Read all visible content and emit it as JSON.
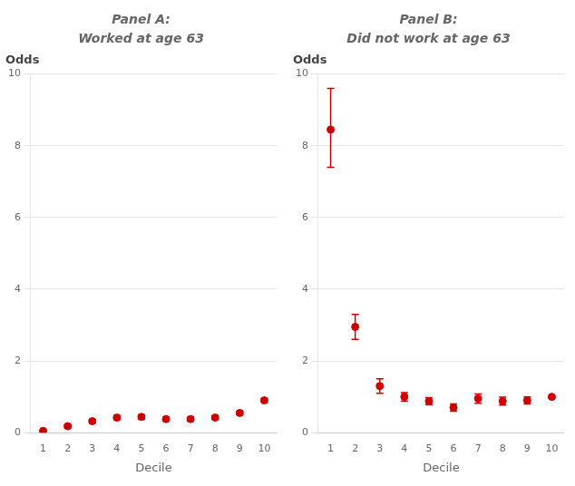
{
  "chart_data": [
    {
      "type": "scatter",
      "title": "Panel A:",
      "subtitle": "Worked at age 63",
      "xlabel": "Decile",
      "ylabel": "Odds",
      "x": [
        1,
        2,
        3,
        4,
        5,
        6,
        7,
        8,
        9,
        10
      ],
      "values": [
        0.05,
        0.18,
        0.32,
        0.42,
        0.44,
        0.38,
        0.38,
        0.42,
        0.55,
        0.9
      ],
      "ci_low": [
        0.03,
        0.14,
        0.27,
        0.36,
        0.38,
        0.33,
        0.33,
        0.37,
        0.5,
        0.85
      ],
      "ci_high": [
        0.07,
        0.22,
        0.37,
        0.48,
        0.5,
        0.43,
        0.43,
        0.47,
        0.6,
        0.95
      ],
      "xlim": [
        0.5,
        10.5
      ],
      "xticks": [
        1,
        2,
        3,
        4,
        5,
        6,
        7,
        8,
        9,
        10
      ],
      "ylim": [
        0,
        10
      ],
      "yticks": [
        0,
        2,
        4,
        6,
        8,
        10
      ],
      "color": "#cc0000",
      "marker": "circle",
      "grid": "y"
    },
    {
      "type": "scatter",
      "title": "Panel B:",
      "subtitle": "Did not work at age 63",
      "xlabel": "Decile",
      "ylabel": "Odds",
      "x": [
        1,
        2,
        3,
        4,
        5,
        6,
        7,
        8,
        9,
        10
      ],
      "values": [
        8.45,
        2.95,
        1.3,
        1.0,
        0.88,
        0.7,
        0.95,
        0.88,
        0.9,
        1.0
      ],
      "ci_low": [
        7.4,
        2.6,
        1.1,
        0.88,
        0.78,
        0.6,
        0.82,
        0.77,
        0.8,
        0.97
      ],
      "ci_high": [
        9.6,
        3.3,
        1.5,
        1.12,
        0.98,
        0.8,
        1.08,
        0.99,
        1.0,
        1.03
      ],
      "xlim": [
        0.5,
        10.5
      ],
      "xticks": [
        1,
        2,
        3,
        4,
        5,
        6,
        7,
        8,
        9,
        10
      ],
      "ylim": [
        0,
        10
      ],
      "yticks": [
        0,
        2,
        4,
        6,
        8,
        10
      ],
      "color": "#cc0000",
      "marker": "circle",
      "grid": "y"
    }
  ]
}
